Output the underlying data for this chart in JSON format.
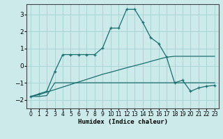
{
  "xlabel": "Humidex (Indice chaleur)",
  "bg_color": "#cceaea",
  "grid_color": "#aad4d4",
  "line_color": "#1a6e6e",
  "xlim": [
    -0.5,
    23.5
  ],
  "ylim": [
    -2.5,
    3.6
  ],
  "yticks": [
    -2,
    -1,
    0,
    1,
    2,
    3
  ],
  "xticks": [
    0,
    1,
    2,
    3,
    4,
    5,
    6,
    7,
    8,
    9,
    10,
    11,
    12,
    13,
    14,
    15,
    16,
    17,
    18,
    19,
    20,
    21,
    22,
    23
  ],
  "line1_x": [
    0,
    1,
    2,
    3,
    4,
    5,
    6,
    7,
    8,
    9,
    10,
    11,
    12,
    13,
    14,
    15,
    16,
    17,
    18,
    19,
    20,
    21,
    22,
    23
  ],
  "line1_y": [
    -1.8,
    -1.65,
    -1.5,
    -0.35,
    0.65,
    0.65,
    0.65,
    0.65,
    0.65,
    1.05,
    2.2,
    2.2,
    3.3,
    3.3,
    2.55,
    1.65,
    1.3,
    0.5,
    -1.0,
    -0.85,
    -1.5,
    -1.3,
    -1.2,
    -1.15
  ],
  "line2_x": [
    0,
    1,
    2,
    3,
    4,
    5,
    6,
    7,
    8,
    9,
    10,
    11,
    12,
    13,
    14,
    15,
    16,
    17,
    18,
    19,
    20,
    21,
    22,
    23
  ],
  "line2_y": [
    -1.8,
    -1.7,
    -1.55,
    -1.4,
    -1.25,
    -1.1,
    -0.95,
    -0.8,
    -0.65,
    -0.5,
    -0.38,
    -0.25,
    -0.12,
    0.0,
    0.12,
    0.25,
    0.38,
    0.5,
    0.55,
    0.55,
    0.55,
    0.55,
    0.55,
    0.55
  ],
  "line3_x": [
    0,
    1,
    2,
    3,
    4,
    5,
    6,
    7,
    8,
    9,
    10,
    11,
    12,
    13,
    14,
    15,
    16,
    17,
    18,
    19,
    20,
    21,
    22,
    23
  ],
  "line3_y": [
    -1.8,
    -1.8,
    -1.75,
    -1.0,
    -1.0,
    -1.0,
    -1.0,
    -1.0,
    -1.0,
    -1.0,
    -1.0,
    -1.0,
    -1.0,
    -1.0,
    -1.0,
    -1.0,
    -1.0,
    -1.0,
    -1.0,
    -1.0,
    -1.0,
    -1.0,
    -1.0,
    -1.0
  ]
}
